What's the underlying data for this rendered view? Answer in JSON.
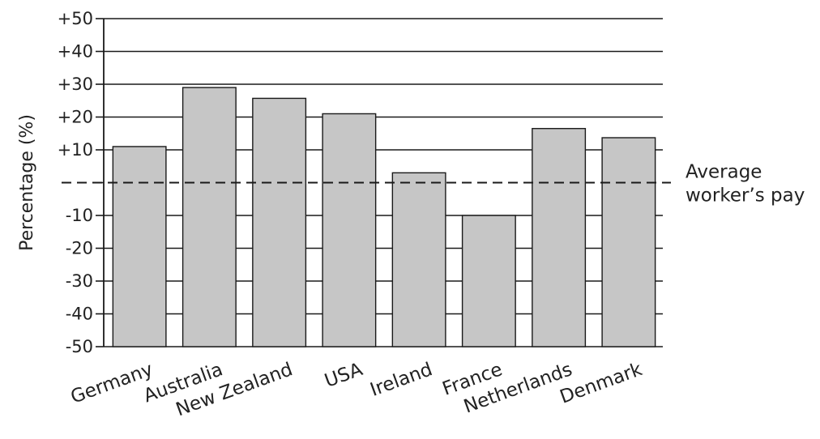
{
  "chart_data": {
    "type": "bar",
    "categories": [
      "Germany",
      "Australia",
      "New Zealand",
      "USA",
      "Ireland",
      "France",
      "Netherlands",
      "Denmark"
    ],
    "values": [
      11,
      29,
      25.7,
      21,
      3,
      -10,
      16.5,
      13.7
    ],
    "ylabel": "Percentage (%)",
    "xlabel": "",
    "ylim": [
      -50,
      50
    ],
    "yticks": [
      50,
      40,
      30,
      20,
      10,
      0,
      -10,
      -20,
      -30,
      -40,
      -50
    ],
    "ytick_labels": [
      "+50",
      "+40",
      "+30",
      "+20",
      "+10",
      "",
      "-10",
      "-20",
      "-30",
      "-40",
      "-50"
    ],
    "reference_line": {
      "value": 0,
      "label_lines": [
        "Average",
        "worker’s pay"
      ],
      "style": "dashed"
    },
    "grid": true,
    "bar_color": "#c6c6c6",
    "bar_edge_color": "#1a1a1a",
    "grid_color": "#1a1a1a"
  }
}
